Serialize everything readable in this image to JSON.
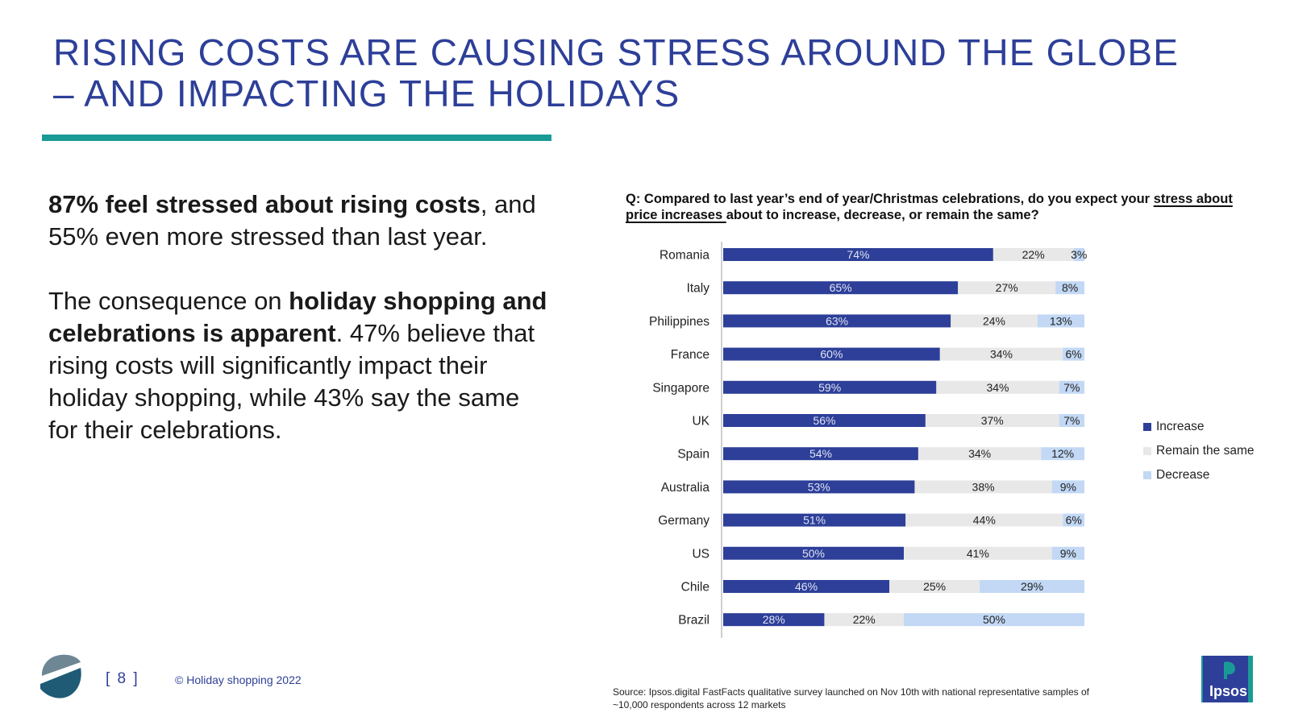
{
  "title": {
    "line1": "RISING COSTS ARE CAUSING STRESS AROUND THE GLOBE",
    "line2": "– AND IMPACTING THE HOLIDAYS"
  },
  "body": {
    "p1_bold": "87%  feel stressed about rising costs",
    "p1_rest": ", and 55% even more stressed than last year.",
    "p2_start": "The consequence on ",
    "p2_bold": "holiday shopping and celebrations is apparent",
    "p2_rest": ". 47% believe that rising costs will significantly impact their holiday shopping, while 43% say the same for their celebrations."
  },
  "question": {
    "prefix": "Q: Compared to last year’s end of year/Christmas celebrations, do you expect your ",
    "underlined": "stress about price increases ",
    "suffix": "about to increase, decrease, or remain the same?"
  },
  "chart_data": {
    "type": "bar",
    "orientation": "horizontal",
    "stacked": true,
    "categories": [
      "Romania",
      "Italy",
      "Philippines",
      "France",
      "Singapore",
      "UK",
      "Spain",
      "Australia",
      "Germany",
      "US",
      "Chile",
      "Brazil"
    ],
    "series": [
      {
        "name": "Increase",
        "values": [
          74,
          65,
          63,
          60,
          59,
          56,
          54,
          53,
          51,
          50,
          46,
          28
        ]
      },
      {
        "name": "Remain the same",
        "values": [
          22,
          27,
          24,
          34,
          34,
          37,
          34,
          38,
          44,
          41,
          25,
          22
        ]
      },
      {
        "name": "Decrease",
        "values": [
          3,
          8,
          13,
          6,
          7,
          7,
          12,
          9,
          6,
          9,
          29,
          50
        ]
      }
    ],
    "value_suffix": "%",
    "colors": {
      "Increase": "#2d3f98",
      "Remain the same": "#e8e8e8",
      "Decrease": "#c2d8f4"
    },
    "legend_position": "right",
    "grid": false
  },
  "source": "Source: Ipsos.digital FastFacts qualitative survey launched on Nov 10th with national representative samples of ~10,000 respondents across 12 markets",
  "footer": {
    "page": "[ 8 ]",
    "label": "© Holiday shopping 2022",
    "logo_text": "Ipsos"
  }
}
